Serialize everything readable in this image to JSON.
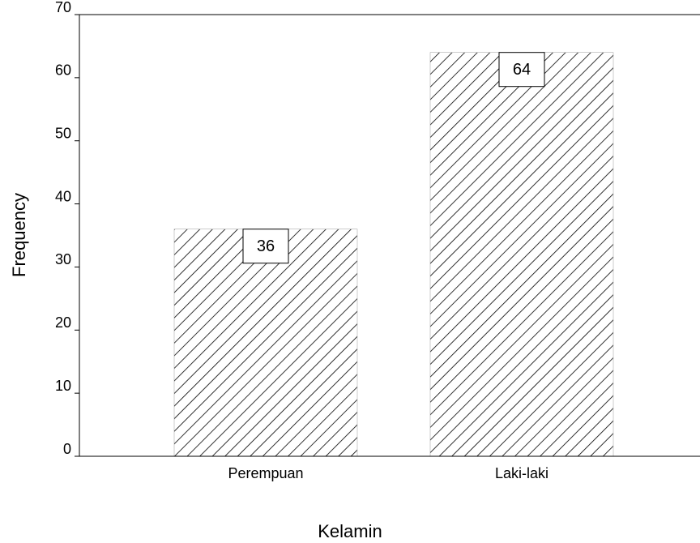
{
  "chart_data": {
    "type": "bar",
    "xlabel": "Kelamin",
    "ylabel": "Frequency",
    "categories": [
      "Perempuan",
      "Laki-laki"
    ],
    "values": [
      36,
      64
    ],
    "color": "#000000",
    "ylim": [
      0,
      70
    ],
    "yticks": [
      0,
      10,
      20,
      30,
      40,
      50,
      60,
      70
    ]
  }
}
